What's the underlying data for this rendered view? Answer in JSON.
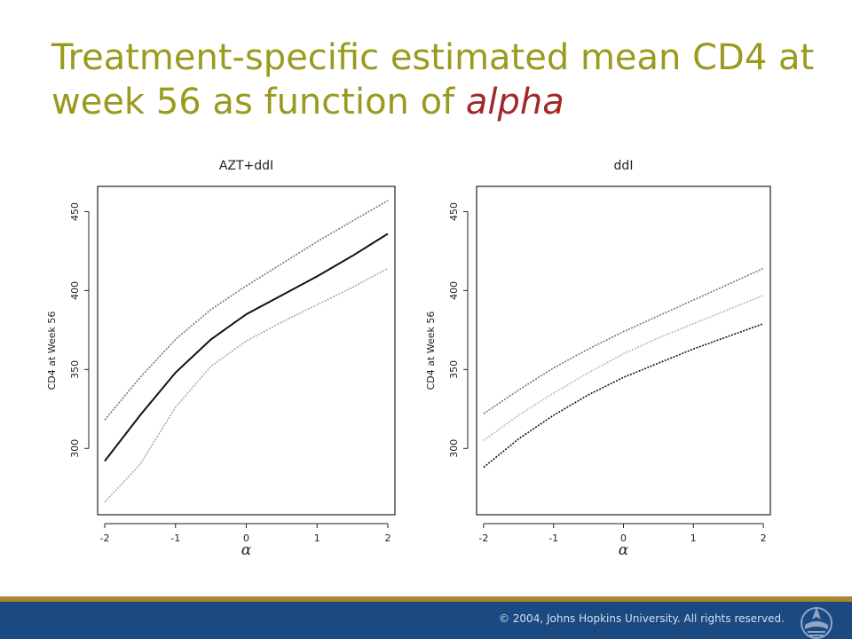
{
  "slide": {
    "title_main": "Treatment-specific estimated mean CD4 at week 56 as function of ",
    "title_emph": "alpha",
    "copyright": "© 2004, Johns Hopkins University. All rights reserved."
  },
  "colors": {
    "title": "#9a9a1e",
    "title_emphasis": "#a12828",
    "footer_bar": "#1b4a82",
    "footer_stripe": "#a8892e"
  },
  "chart_data": [
    {
      "type": "line",
      "title": "AZT+ddI",
      "xlabel": "α",
      "ylabel": "CD4 at Week 56",
      "xlim": [
        -2.1,
        2.1
      ],
      "ylim": [
        258,
        466
      ],
      "xticks": [
        -2,
        -1,
        0,
        1,
        2
      ],
      "yticks": [
        300,
        350,
        400,
        450
      ],
      "grid": false,
      "x": [
        -2,
        -1.5,
        -1,
        -0.5,
        0,
        0.5,
        1,
        1.5,
        2
      ],
      "series": [
        {
          "values": [
            318,
            345,
            369,
            388,
            403,
            417,
            431,
            444,
            457
          ],
          "color": "#777777",
          "style": "dotted"
        },
        {
          "values": [
            292,
            321,
            348,
            369,
            385,
            397,
            409,
            422,
            436
          ],
          "color": "#111111",
          "style": "solid"
        },
        {
          "values": [
            266,
            290,
            326,
            352,
            368,
            380,
            391,
            402,
            414
          ],
          "color": "#aaaaaa",
          "style": "dotted"
        }
      ]
    },
    {
      "type": "line",
      "title": "ddI",
      "xlabel": "α",
      "ylabel": "CD4 at Week 56",
      "xlim": [
        -2.1,
        2.1
      ],
      "ylim": [
        258,
        466
      ],
      "xticks": [
        -2,
        -1,
        0,
        1,
        2
      ],
      "yticks": [
        300,
        350,
        400,
        450
      ],
      "grid": false,
      "x": [
        -2,
        -1.5,
        -1,
        -0.5,
        0,
        0.5,
        1,
        1.5,
        2
      ],
      "series": [
        {
          "values": [
            322,
            337,
            351,
            363,
            374,
            384,
            394,
            404,
            414
          ],
          "color": "#777777",
          "style": "dotted"
        },
        {
          "values": [
            305,
            321,
            335,
            348,
            360,
            370,
            379,
            388,
            397
          ],
          "color": "#bbbbbb",
          "style": "dotted"
        },
        {
          "values": [
            288,
            306,
            321,
            334,
            345,
            354,
            363,
            371,
            379
          ],
          "color": "#111111",
          "style": "dotted"
        }
      ]
    }
  ]
}
